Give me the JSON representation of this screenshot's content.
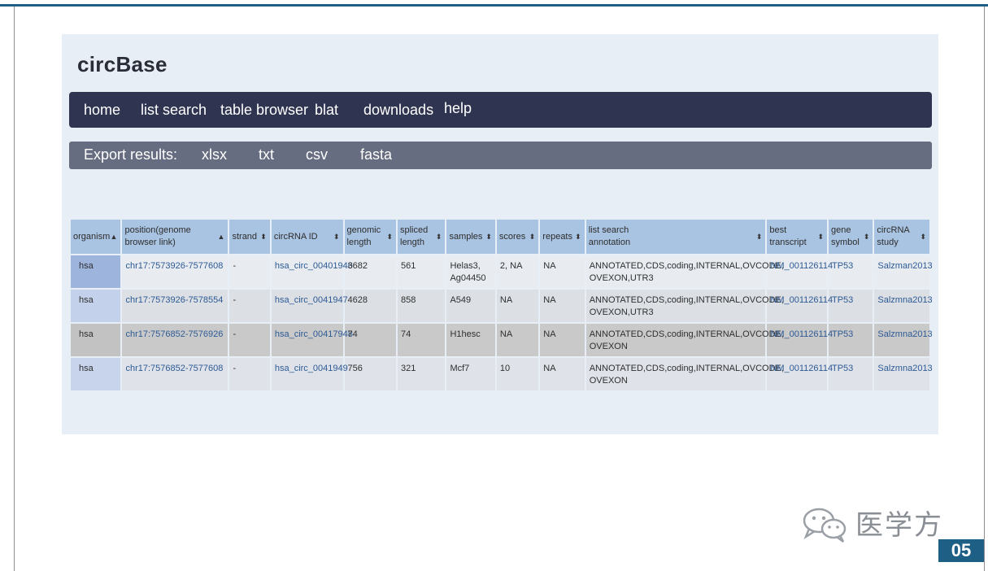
{
  "site": {
    "title": "circBase"
  },
  "nav": {
    "items": [
      "home",
      "list search",
      "table browser",
      "blat",
      "downloads",
      "help"
    ]
  },
  "export": {
    "label": "Export results:",
    "formats": [
      "xlsx",
      "txt",
      "csv",
      "fasta"
    ]
  },
  "table": {
    "headers": [
      "organism",
      "position(genome browser link)",
      "strand",
      "circRNA ID",
      "genomic length",
      "spliced length",
      "samples",
      "scores",
      "repeats",
      "list search annotation",
      "best transcript",
      "gene symbol",
      "circRNA study"
    ],
    "header_sort_icons": [
      "▲",
      "▲",
      "⬍",
      "⬍",
      "⬍",
      "⬍",
      "⬍",
      "⬍",
      "⬍",
      "⬍",
      "⬍",
      "⬍",
      "⬍"
    ],
    "rows": [
      [
        "hsa",
        "chr17:7573926-7577608",
        "-",
        "hsa_circ_00401946",
        "3682",
        "561",
        "Helas3, Ag04450",
        "2, NA",
        "NA",
        "ANNOTATED,CDS,coding,INTERNAL,OVCODE, OVEXON,UTR3",
        "NM_001126114",
        "TP53",
        "Salzman2013"
      ],
      [
        "hsa",
        "chr17:7573926-7578554",
        "-",
        "hsa_circ_0041947",
        "4628",
        "858",
        "A549",
        "NA",
        "NA",
        "ANNOTATED,CDS,coding,INTERNAL,OVCODE, OVEXON,UTR3",
        "NM_001126114",
        "TP53",
        "Salzmna2013"
      ],
      [
        "hsa",
        "chr17:7576852-7576926",
        "-",
        "hsa_circ_00417948",
        "74",
        "74",
        "H1hesc",
        "NA",
        "NA",
        "ANNOTATED,CDS,coding,INTERNAL,OVCODE, OVEXON",
        "NM_001126114",
        "TP53",
        "Salzmna2013"
      ],
      [
        "hsa",
        "chr17:7576852-7577608",
        "-",
        "hsa_circ_0041949",
        "756",
        "321",
        "Mcf7",
        "10",
        "NA",
        "ANNOTATED,CDS,coding,INTERNAL,OVCODE, OVEXON",
        "NM_001126114",
        "TP53",
        "Salzmna2013"
      ]
    ]
  },
  "watermark": {
    "text": "医学方",
    "icon": "wechat-icon"
  },
  "page": {
    "number": "05"
  },
  "colors": {
    "navbar": "#2f3450",
    "exportbar": "#676d80",
    "header": "#a9c4e2",
    "link": "#2d5a95",
    "badge": "#1e5f86"
  }
}
